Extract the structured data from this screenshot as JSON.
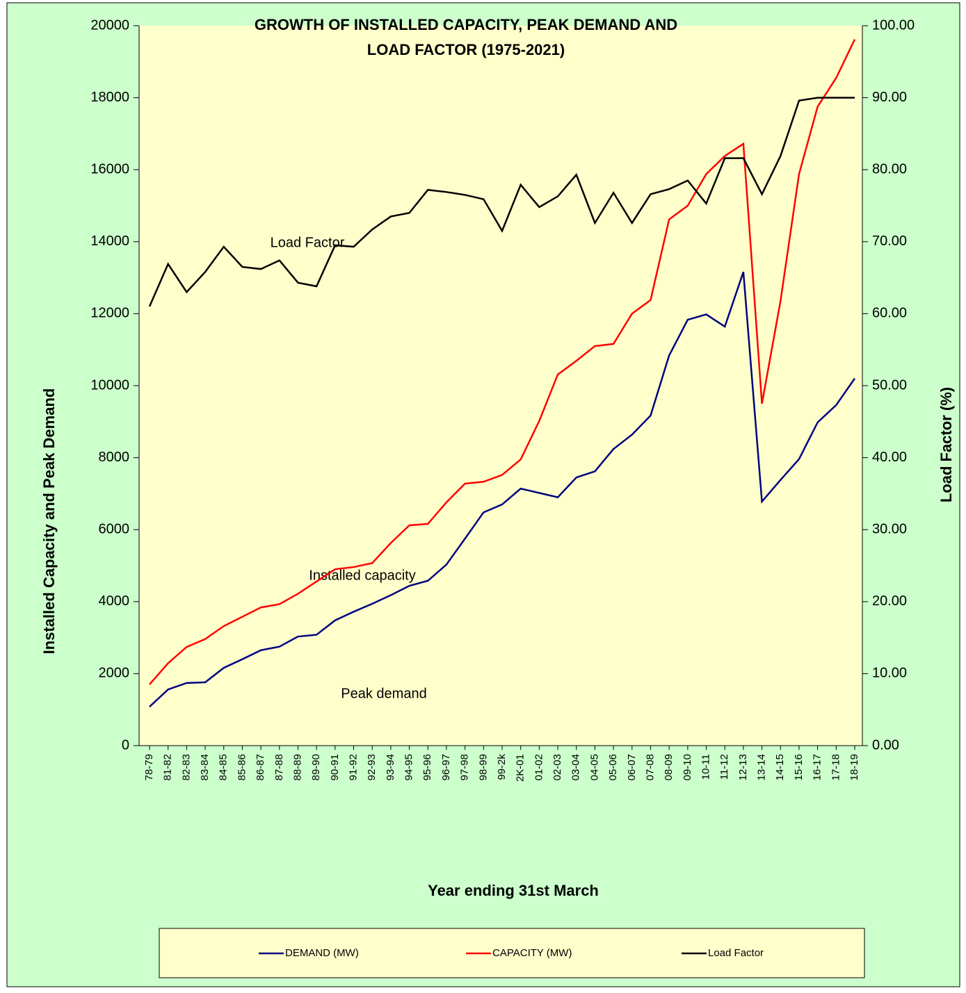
{
  "chart_data": {
    "type": "line",
    "title": [
      "GROWTH OF INSTALLED CAPACITY, PEAK DEMAND AND",
      "LOAD FACTOR (1975-2021)"
    ],
    "y_label": "Installed Capacity and Peak Demand",
    "y2_label": "Load Factor (%)",
    "x_label": "Year ending 31st March",
    "categories": [
      "78-79",
      "81-82",
      "82-83",
      "83-84",
      "84-85",
      "85-86",
      "86-87",
      "87-88",
      "88-89",
      "89-90",
      "90-91",
      "91-92",
      "92-93",
      "93-94",
      "94-95",
      "95-96",
      "96-97",
      "97-98",
      "98-99",
      "99-2k",
      "2K-01",
      "01-02",
      "02-03",
      "03-04",
      "04-05",
      "05-06",
      "06-07",
      "07-08",
      "08-09",
      "09-10",
      "10-11",
      "11-12",
      "12-13",
      "13-14",
      "14-15",
      "15-16",
      "16-17",
      "17-18",
      "18-19"
    ],
    "series": [
      {
        "name": "DEMAND (MW)",
        "color": "#000080",
        "values": [
          1080,
          1560,
          1740,
          1760,
          2160,
          2400,
          2650,
          2750,
          3030,
          3080,
          3480,
          3720,
          3940,
          4180,
          4440,
          4580,
          5030,
          5750,
          6480,
          6700,
          7140,
          7020,
          6900,
          7450,
          7620,
          8240,
          8640,
          9170,
          10840,
          11830,
          11980,
          11640,
          13160,
          6780,
          7380,
          7960,
          8980,
          9460,
          10200
        ]
      },
      {
        "name": "CAPACITY (MW)",
        "color": "#ff0000",
        "values": [
          1700,
          2290,
          2740,
          2960,
          3320,
          3580,
          3840,
          3930,
          4220,
          4560,
          4900,
          4960,
          5070,
          5630,
          6120,
          6160,
          6760,
          7280,
          7330,
          7520,
          7950,
          9020,
          10310,
          10690,
          11100,
          11160,
          12000,
          12380,
          14620,
          15000,
          15880,
          16380,
          16720,
          9500,
          12350,
          15880,
          17750,
          18550,
          19620
        ]
      },
      {
        "name": "Load Factor",
        "color": "#000000",
        "axis": "y2",
        "values": [
          61.0,
          66.9,
          63.0,
          65.8,
          69.3,
          66.5,
          66.2,
          67.4,
          64.3,
          63.8,
          69.5,
          69.3,
          71.7,
          73.5,
          74.0,
          77.2,
          76.9,
          76.5,
          75.9,
          71.5,
          77.9,
          74.8,
          76.3,
          79.3,
          72.6,
          76.8,
          72.6,
          76.6,
          77.3,
          78.5,
          75.3,
          81.6,
          81.6,
          76.6,
          81.9,
          89.6,
          90.0,
          90.0,
          90.0
        ]
      }
    ],
    "annotations": [
      "Load Factor",
      "Installed capacity",
      "Peak demand"
    ],
    "ylim": [
      0,
      20000
    ],
    "yticks": [
      0,
      2000,
      4000,
      6000,
      8000,
      10000,
      12000,
      14000,
      16000,
      18000,
      20000
    ],
    "y2lim": [
      0,
      100
    ],
    "y2ticks": [
      {
        "value": 0,
        "label": "0.00"
      },
      {
        "value": 10,
        "label": "10.00"
      },
      {
        "value": 20,
        "label": "20.00"
      },
      {
        "value": 30,
        "label": "30.00"
      },
      {
        "value": 40,
        "label": "40.00"
      },
      {
        "value": 50,
        "label": "50.00"
      },
      {
        "value": 60,
        "label": "60.00"
      },
      {
        "value": 70,
        "label": "70.00"
      },
      {
        "value": 80,
        "label": "80.00"
      },
      {
        "value": 90,
        "label": "90.00"
      },
      {
        "value": 100,
        "label": "100.00"
      }
    ],
    "grid": false,
    "legend": "bottom"
  }
}
